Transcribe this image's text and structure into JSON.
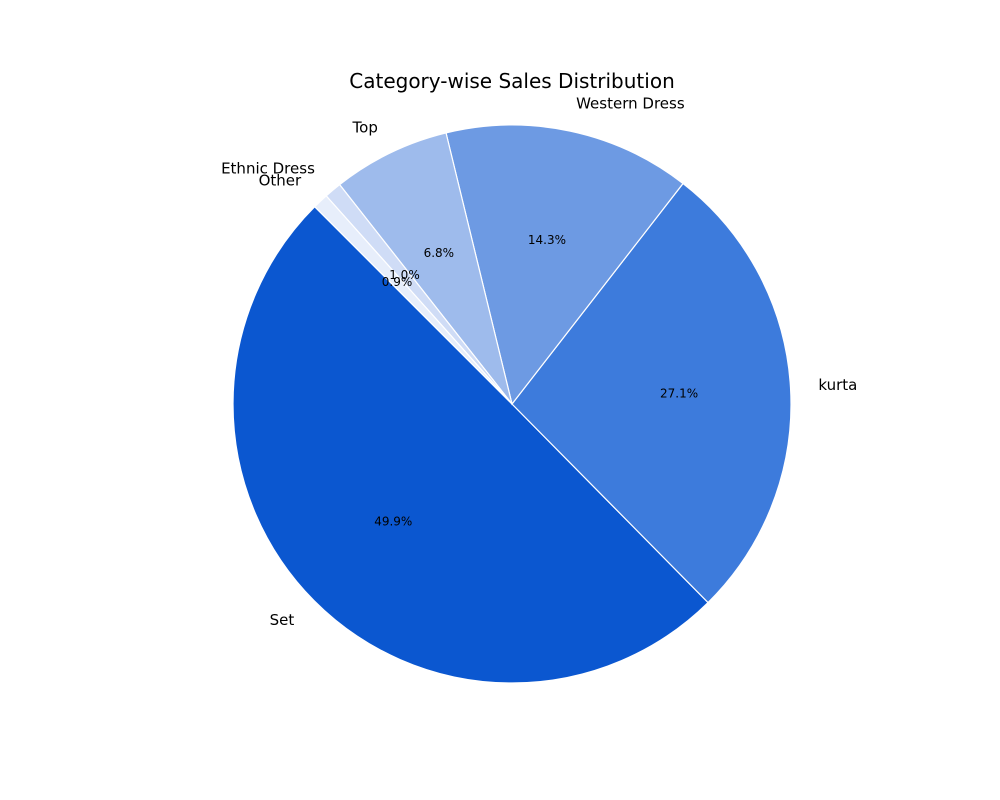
{
  "chart_data": {
    "type": "pie",
    "title": "Category-wise Sales Distribution",
    "start_angle_deg": 135,
    "direction": "counterclockwise",
    "slices": [
      {
        "label": "Set",
        "value": 49.9,
        "pct_label": "49.9%",
        "color": "#0b57d0"
      },
      {
        "label": "kurta",
        "value": 27.1,
        "pct_label": "27.1%",
        "color": "#3d7bdc"
      },
      {
        "label": "Western Dress",
        "value": 14.3,
        "pct_label": "14.3%",
        "color": "#6d9ae3"
      },
      {
        "label": "Top",
        "value": 6.8,
        "pct_label": "6.8%",
        "color": "#9ebbec"
      },
      {
        "label": "Ethnic Dress",
        "value": 1.0,
        "pct_label": "1.0%",
        "color": "#cfdcf6"
      },
      {
        "label": "Other",
        "value": 0.9,
        "pct_label": "0.9%",
        "color": "#e7eefb"
      }
    ]
  }
}
